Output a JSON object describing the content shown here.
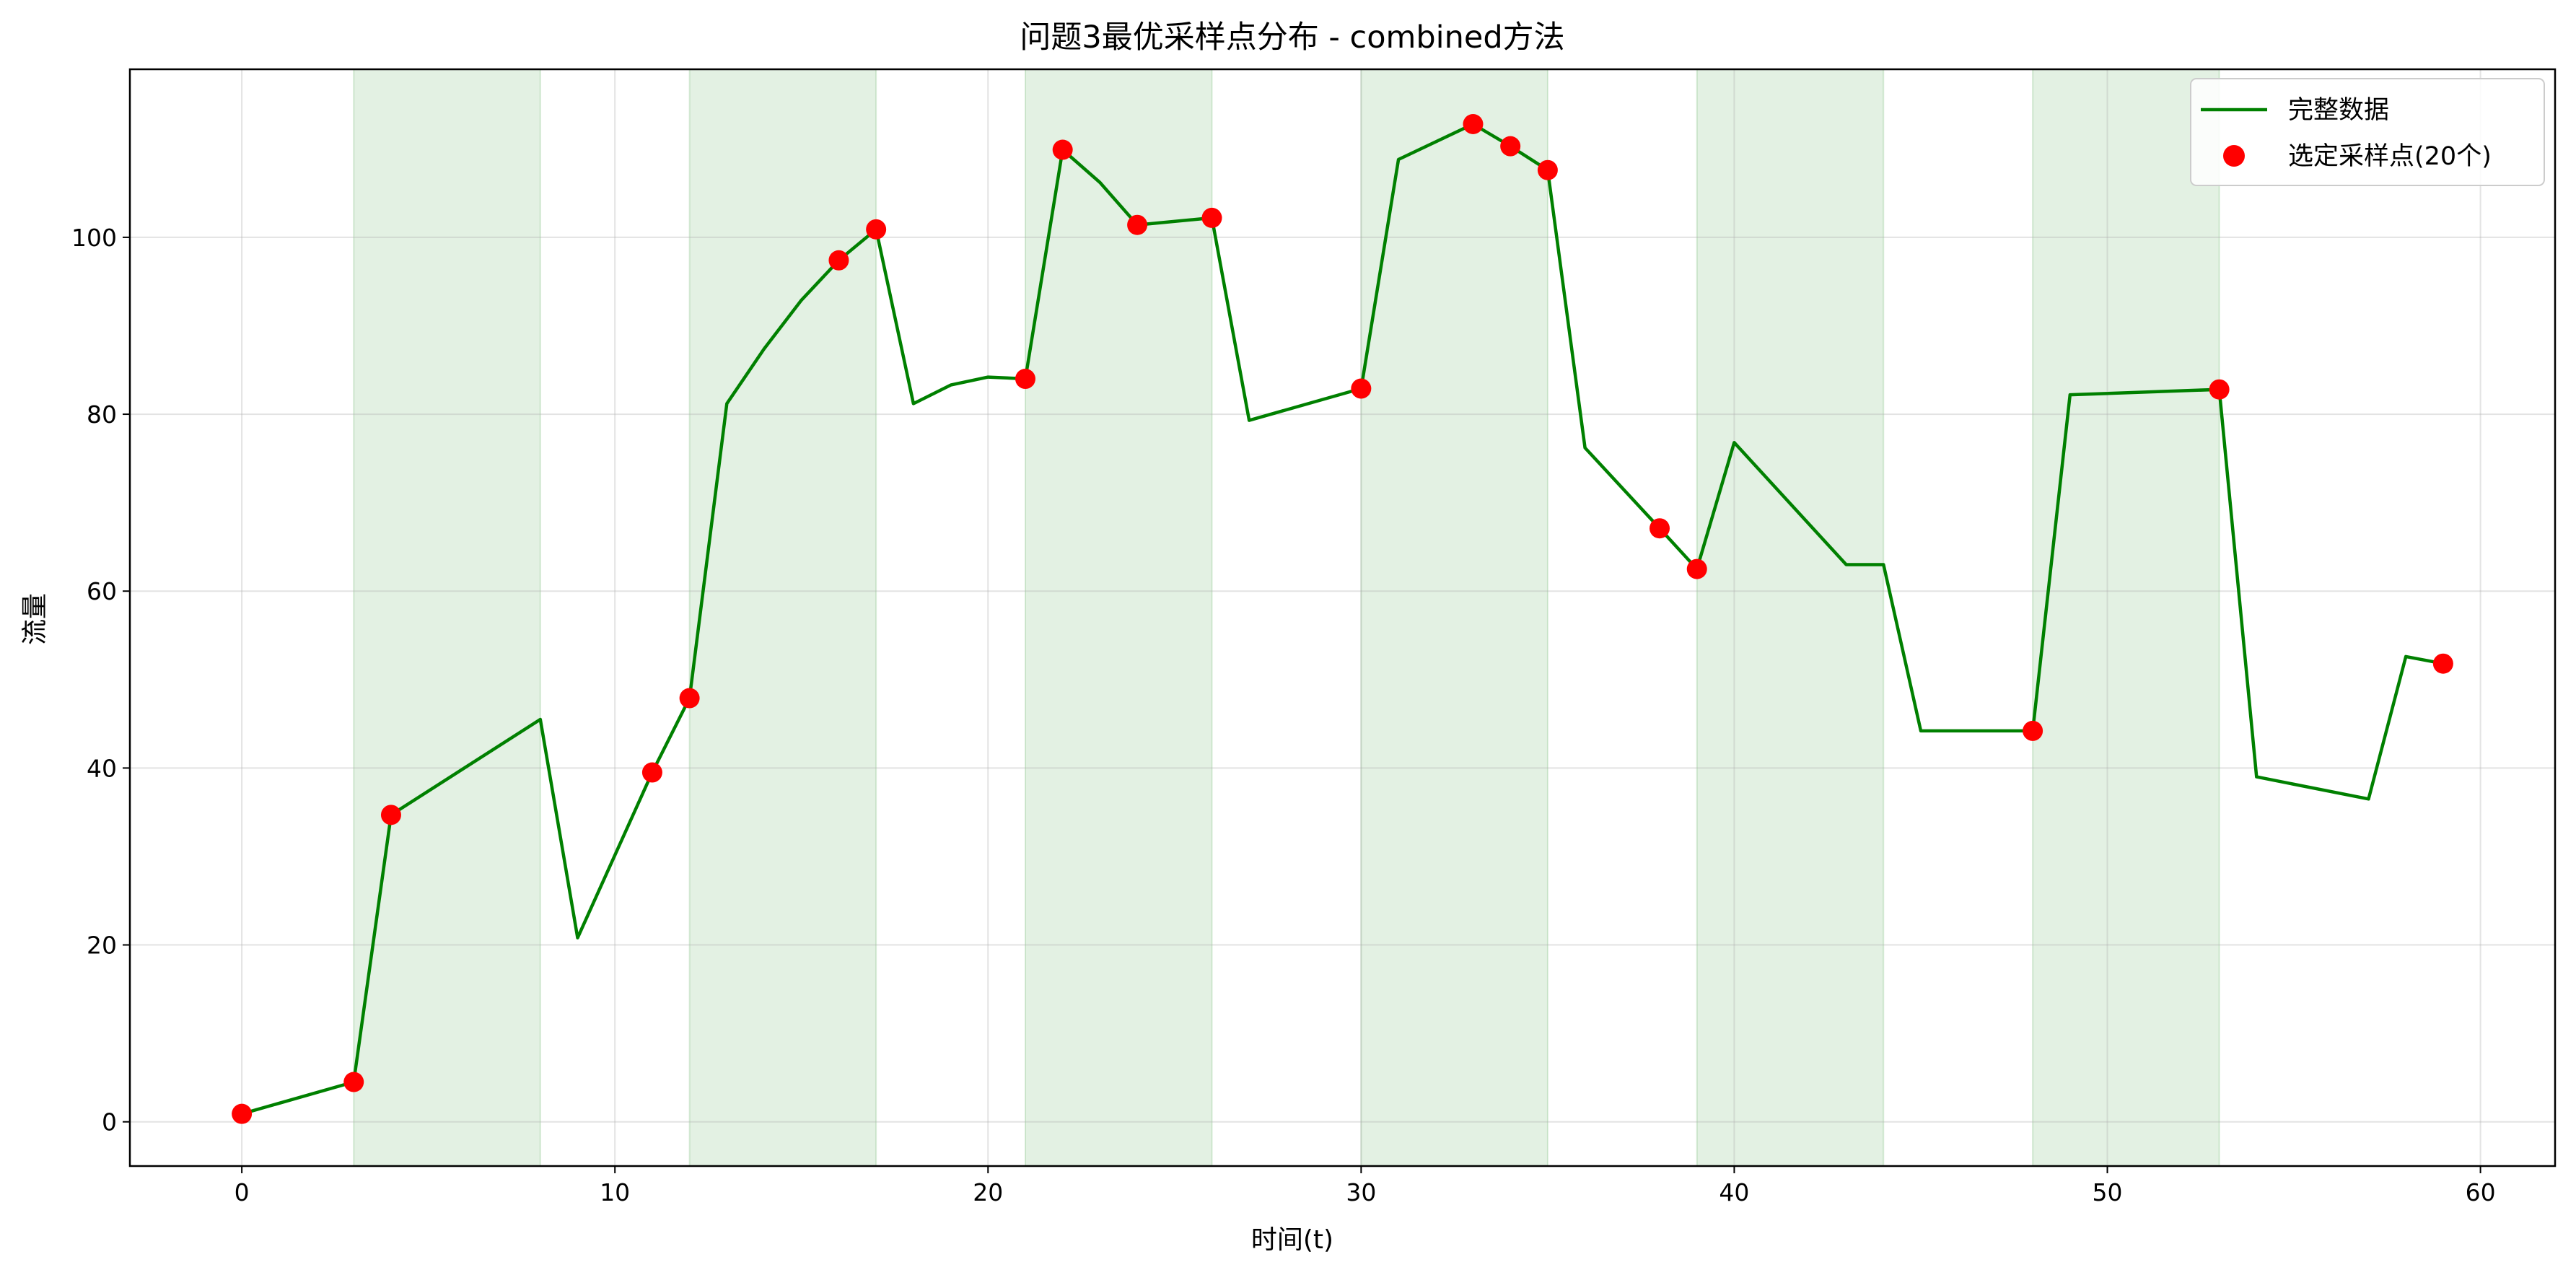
{
  "chart_data": {
    "type": "line",
    "title": "问题3最优采样点分布 - combined方法",
    "xlabel": "时间(t)",
    "ylabel": "流量",
    "xlim": [
      -3,
      62
    ],
    "ylim": [
      -5,
      119
    ],
    "xticks": [
      0,
      10,
      20,
      30,
      40,
      50,
      60
    ],
    "yticks": [
      0,
      20,
      40,
      60,
      80,
      100
    ],
    "grid": true,
    "legend_position": "top-right",
    "shaded_regions": [
      [
        3,
        8
      ],
      [
        12,
        17
      ],
      [
        21,
        26
      ],
      [
        30,
        35
      ],
      [
        39,
        44
      ],
      [
        48,
        53
      ]
    ],
    "series": [
      {
        "name": "完整数据",
        "kind": "line",
        "color": "#008000",
        "x": [
          0,
          3,
          4,
          8,
          9,
          11,
          12,
          13,
          14,
          15,
          16,
          17,
          18,
          19,
          20,
          21,
          22,
          23,
          24,
          26,
          27,
          30,
          31,
          33,
          34,
          35,
          36,
          38,
          39,
          40,
          43,
          44,
          45,
          48,
          49,
          53,
          54,
          57,
          58,
          59
        ],
        "y": [
          0.9,
          4.5,
          34.7,
          45.5,
          20.8,
          39.5,
          47.9,
          81.2,
          87.4,
          92.9,
          97.4,
          100.9,
          81.2,
          83.3,
          84.2,
          84.0,
          109.9,
          106.2,
          101.4,
          102.2,
          79.3,
          82.9,
          108.8,
          112.8,
          110.3,
          107.6,
          76.2,
          67.1,
          62.5,
          76.8,
          63.0,
          63.0,
          44.2,
          44.2,
          82.2,
          82.8,
          39.0,
          36.5,
          52.6,
          51.8
        ]
      },
      {
        "name": "选定采样点(20个)",
        "kind": "scatter",
        "color": "#ff0000",
        "x": [
          0,
          3,
          4,
          11,
          12,
          16,
          17,
          21,
          22,
          24,
          26,
          30,
          33,
          34,
          35,
          38,
          39,
          48,
          53,
          59
        ],
        "y": [
          0.9,
          4.5,
          34.7,
          39.5,
          47.9,
          97.4,
          100.9,
          84.0,
          109.9,
          101.4,
          102.2,
          82.9,
          112.8,
          110.3,
          107.6,
          67.1,
          62.5,
          44.2,
          82.8,
          51.8
        ]
      }
    ]
  }
}
